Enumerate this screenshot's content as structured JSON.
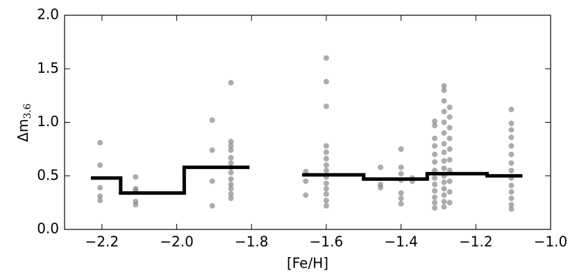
{
  "chart_data": {
    "type": "scatter",
    "xlabel": "[Fe/H]",
    "ylabel": "Δm",
    "ylabel_sub": "3.6",
    "xlim": [
      -2.3,
      -1.0
    ],
    "xticks": [
      {
        "value": -2.2,
        "label": "−2.2"
      },
      {
        "value": -2.0,
        "label": "−2.0"
      },
      {
        "value": -1.8,
        "label": "−1.8"
      },
      {
        "value": -1.6,
        "label": "−1.6"
      },
      {
        "value": -1.4,
        "label": "−1.4"
      },
      {
        "value": -1.2,
        "label": "−1.2"
      },
      {
        "value": -1.0,
        "label": "−1.0"
      }
    ],
    "ylim": [
      0,
      2
    ],
    "yticks": [
      {
        "value": 0,
        "label": "0.0"
      },
      0.5,
      {
        "value": 1,
        "label": "1.0"
      },
      1.5,
      {
        "value": 2,
        "label": "2.0"
      }
    ],
    "series": [
      {
        "type": "scatter",
        "color": "#808080",
        "x": [
          -2.205,
          -2.205,
          -2.205,
          -2.205,
          -2.205,
          -2.11,
          -2.11,
          -2.11,
          -2.11,
          -2.11,
          -1.905,
          -1.905,
          -1.905,
          -1.905,
          -1.855,
          -1.855,
          -1.855,
          -1.855,
          -1.855,
          -1.855,
          -1.855,
          -1.855,
          -1.855,
          -1.855,
          -1.855,
          -1.855,
          -1.855,
          -1.655,
          -1.655,
          -1.655,
          -1.6,
          -1.6,
          -1.6,
          -1.6,
          -1.6,
          -1.6,
          -1.6,
          -1.6,
          -1.6,
          -1.6,
          -1.6,
          -1.6,
          -1.6,
          -1.6,
          -1.455,
          -1.455,
          -1.455,
          -1.4,
          -1.4,
          -1.4,
          -1.4,
          -1.4,
          -1.4,
          -1.4,
          -1.37,
          -1.37,
          -1.31,
          -1.31,
          -1.31,
          -1.31,
          -1.31,
          -1.31,
          -1.31,
          -1.31,
          -1.31,
          -1.31,
          -1.31,
          -1.31,
          -1.31,
          -1.285,
          -1.285,
          -1.285,
          -1.285,
          -1.285,
          -1.285,
          -1.285,
          -1.285,
          -1.285,
          -1.285,
          -1.285,
          -1.285,
          -1.285,
          -1.285,
          -1.285,
          -1.285,
          -1.27,
          -1.27,
          -1.27,
          -1.27,
          -1.27,
          -1.27,
          -1.27,
          -1.27,
          -1.27,
          -1.27,
          -1.105,
          -1.105,
          -1.105,
          -1.105,
          -1.105,
          -1.105,
          -1.105,
          -1.105,
          -1.105,
          -1.105,
          -1.105,
          -1.105,
          -1.105,
          -1.105
        ],
        "values": [
          0.81,
          0.6,
          0.39,
          0.31,
          0.27,
          0.49,
          0.38,
          0.36,
          0.26,
          0.23,
          1.02,
          0.74,
          0.45,
          0.22,
          1.37,
          0.82,
          0.78,
          0.74,
          0.67,
          0.62,
          0.58,
          0.53,
          0.47,
          0.42,
          0.38,
          0.33,
          0.29,
          0.54,
          0.45,
          0.32,
          1.6,
          1.38,
          1.15,
          0.78,
          0.72,
          0.66,
          0.6,
          0.55,
          0.49,
          0.43,
          0.38,
          0.33,
          0.27,
          0.22,
          0.58,
          0.42,
          0.39,
          0.75,
          0.58,
          0.52,
          0.46,
          0.34,
          0.29,
          0.24,
          0.48,
          0.45,
          1.01,
          0.97,
          0.85,
          0.78,
          0.7,
          0.63,
          0.55,
          0.48,
          0.42,
          0.36,
          0.3,
          0.25,
          0.2,
          1.34,
          1.3,
          1.2,
          1.1,
          1.0,
          0.9,
          0.8,
          0.72,
          0.64,
          0.57,
          0.5,
          0.44,
          0.38,
          0.32,
          0.26,
          0.21,
          1.14,
          1.05,
          0.95,
          0.85,
          0.75,
          0.65,
          0.55,
          0.45,
          0.35,
          0.25,
          1.12,
          0.99,
          0.93,
          0.86,
          0.78,
          0.7,
          0.62,
          0.55,
          0.48,
          0.41,
          0.35,
          0.29,
          0.23,
          0.19
        ]
      },
      {
        "type": "step",
        "color": "#000000",
        "bins": [
          -2.225,
          -2.15,
          -1.98,
          -1.81
        ],
        "values": [
          0.48,
          0.34,
          0.58
        ]
      },
      {
        "type": "step",
        "color": "#000000",
        "bins": [
          -1.66,
          -1.5,
          -1.33,
          -1.17,
          -1.08
        ],
        "values": [
          0.51,
          0.47,
          0.52,
          0.5
        ]
      }
    ]
  }
}
